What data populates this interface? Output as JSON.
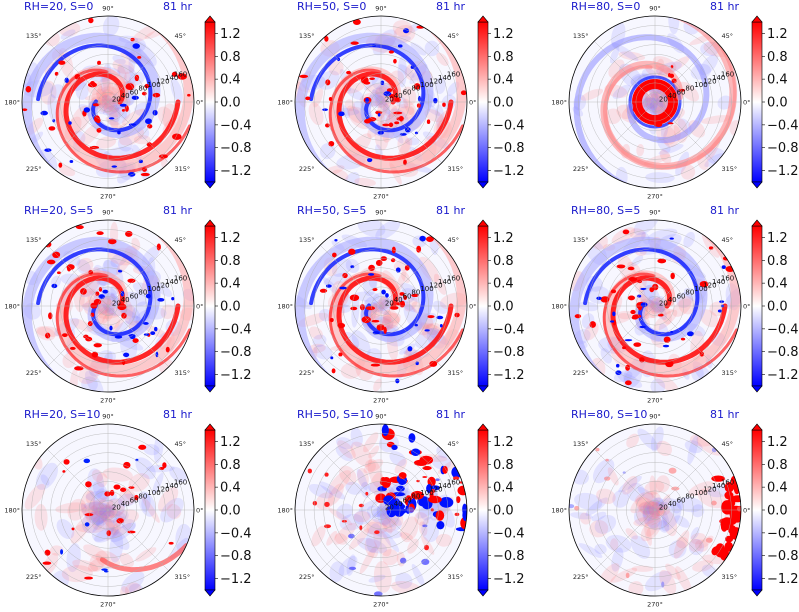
{
  "chart_data": [
    {
      "type": "heatmap",
      "projection": "polar",
      "title_left": "RH=20, S=0",
      "title_right": "81 hr",
      "row": 0,
      "col": 0,
      "pattern": "spiral-strong"
    },
    {
      "type": "heatmap",
      "projection": "polar",
      "title_left": "RH=50, S=0",
      "title_right": "81 hr",
      "row": 0,
      "col": 1,
      "pattern": "spiral-strong"
    },
    {
      "type": "heatmap",
      "projection": "polar",
      "title_left": "RH=80, S=0",
      "title_right": "81 hr",
      "row": 0,
      "col": 2,
      "pattern": "spiral-ring"
    },
    {
      "type": "heatmap",
      "projection": "polar",
      "title_left": "RH=20, S=5",
      "title_right": "81 hr",
      "row": 1,
      "col": 0,
      "pattern": "spiral-strong"
    },
    {
      "type": "heatmap",
      "projection": "polar",
      "title_left": "RH=50, S=5",
      "title_right": "81 hr",
      "row": 1,
      "col": 1,
      "pattern": "spiral-strong"
    },
    {
      "type": "heatmap",
      "projection": "polar",
      "title_left": "RH=80, S=5",
      "title_right": "81 hr",
      "row": 1,
      "col": 2,
      "pattern": "spiral-strong"
    },
    {
      "type": "heatmap",
      "projection": "polar",
      "title_left": "RH=20, S=10",
      "title_right": "81 hr",
      "row": 2,
      "col": 0,
      "pattern": "sparse"
    },
    {
      "type": "heatmap",
      "projection": "polar",
      "title_left": "RH=50, S=10",
      "title_right": "81 hr",
      "row": 2,
      "col": 1,
      "pattern": "clustered"
    },
    {
      "type": "heatmap",
      "projection": "polar",
      "title_left": "RH=80, S=10",
      "title_right": "81 hr",
      "row": 2,
      "col": 2,
      "pattern": "edge"
    }
  ],
  "polar_axes": {
    "angle_labels": [
      "0°",
      "45°",
      "90°",
      "135°",
      "180°",
      "225°",
      "270°",
      "315°"
    ],
    "radius_labels": [
      "20",
      "40",
      "60",
      "80",
      "100",
      "120",
      "140",
      "160"
    ],
    "rlim": [
      0,
      180
    ]
  },
  "colorbar": {
    "cmap": "bwr",
    "vmin": -1.4,
    "vmax": 1.4,
    "extend": "both",
    "ticks": [
      "1.2",
      "0.8",
      "0.4",
      "0.0",
      "−0.4",
      "−0.8",
      "−1.2"
    ]
  },
  "colors": {
    "title": "#1a1acc",
    "positive": "#ff0000",
    "negative": "#0000ff",
    "grid": "#b0b0b0"
  }
}
